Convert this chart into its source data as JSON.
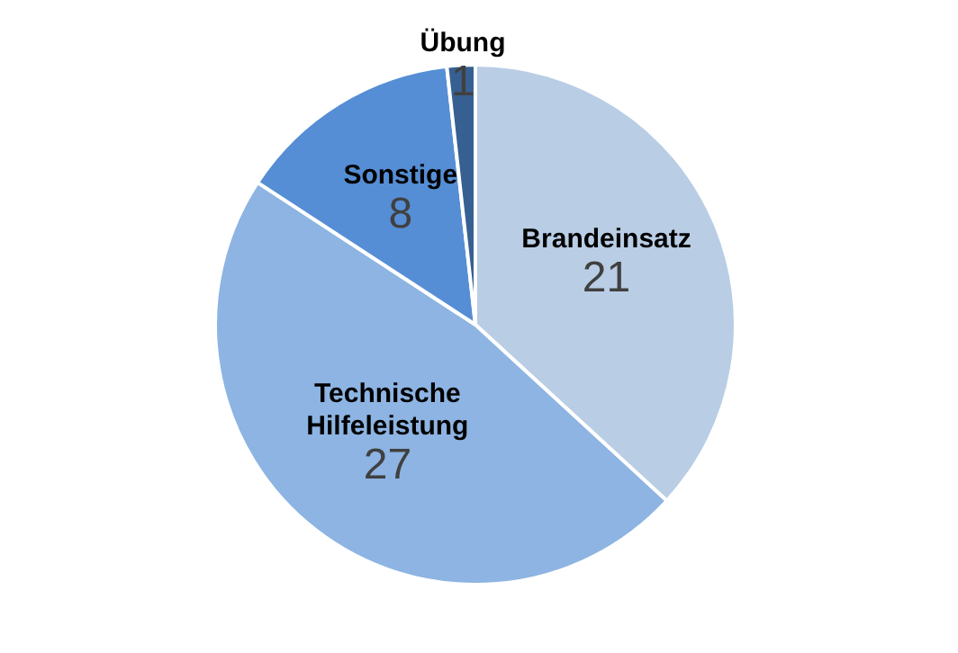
{
  "chart_data": {
    "type": "pie",
    "categories": [
      "Brandeinsatz",
      "Technische Hilfeleistung",
      "Sonstige",
      "Übung"
    ],
    "values": [
      21,
      27,
      8,
      1
    ],
    "colors": [
      "#b9cde5",
      "#8db4e2",
      "#558ed5",
      "#376092"
    ],
    "data_labels": true,
    "legend": false
  }
}
